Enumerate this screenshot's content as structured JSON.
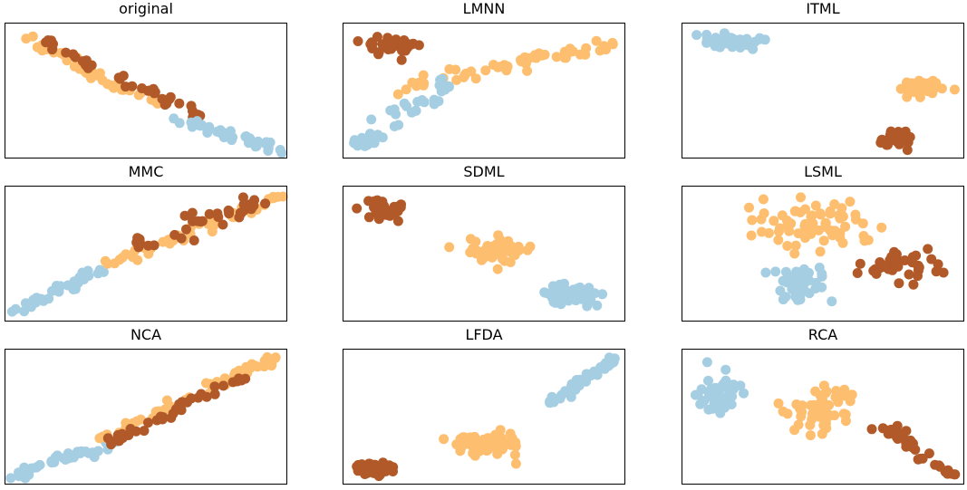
{
  "colors": {
    "class_0": "#a6cee3",
    "class_1": "#fdbf6f",
    "class_2": "#b15928"
  },
  "chart_data": [
    {
      "type": "scatter",
      "title": "original",
      "xlim": [
        0,
        100
      ],
      "ylim": [
        0,
        100
      ],
      "axes_ticks": false,
      "clusters": [
        {
          "cls": 1,
          "kind": "line",
          "from": [
            2,
            95
          ],
          "to": [
            55,
            38
          ],
          "jitter": [
            4,
            3
          ],
          "n": 40
        },
        {
          "cls": 2,
          "kind": "line",
          "from": [
            12,
            88
          ],
          "to": [
            70,
            30
          ],
          "jitter": [
            4,
            3
          ],
          "n": 40
        },
        {
          "cls": 0,
          "kind": "line",
          "from": [
            60,
            30
          ],
          "to": [
            98,
            5
          ],
          "jitter": [
            4,
            2.5
          ],
          "n": 38
        }
      ]
    },
    {
      "type": "scatter",
      "title": "LMNN",
      "xlim": [
        0,
        100
      ],
      "ylim": [
        0,
        100
      ],
      "axes_ticks": false,
      "clusters": [
        {
          "cls": 2,
          "kind": "blob",
          "c": [
            18,
            84
          ],
          "s": [
            11,
            6
          ],
          "n": 34
        },
        {
          "cls": 1,
          "kind": "line",
          "from": [
            20,
            52
          ],
          "to": [
            97,
            85
          ],
          "jitter": [
            4,
            5
          ],
          "n": 58
        },
        {
          "cls": 0,
          "kind": "line",
          "from": [
            5,
            8
          ],
          "to": [
            38,
            55
          ],
          "jitter": [
            5,
            5
          ],
          "n": 42
        }
      ]
    },
    {
      "type": "scatter",
      "title": "ITML",
      "xlim": [
        0,
        100
      ],
      "ylim": [
        0,
        100
      ],
      "axes_ticks": false,
      "clusters": [
        {
          "cls": 0,
          "kind": "blob",
          "c": [
            18,
            86
          ],
          "s": [
            9,
            5
          ],
          "n": 42
        },
        {
          "cls": 1,
          "kind": "blob",
          "c": [
            84,
            52
          ],
          "s": [
            7,
            6
          ],
          "n": 48
        },
        {
          "cls": 2,
          "kind": "blob",
          "c": [
            75,
            15
          ],
          "s": [
            5,
            6
          ],
          "n": 36
        }
      ]
    },
    {
      "type": "scatter",
      "title": "MMC",
      "xlim": [
        0,
        100
      ],
      "ylim": [
        0,
        100
      ],
      "axes_ticks": false,
      "clusters": [
        {
          "cls": 0,
          "kind": "line",
          "from": [
            3,
            6
          ],
          "to": [
            36,
            40
          ],
          "jitter": [
            3,
            3
          ],
          "n": 40
        },
        {
          "cls": 1,
          "kind": "line",
          "from": [
            38,
            42
          ],
          "to": [
            97,
            92
          ],
          "jitter": [
            3,
            4
          ],
          "n": 52
        },
        {
          "cls": 2,
          "kind": "line",
          "from": [
            46,
            55
          ],
          "to": [
            88,
            88
          ],
          "jitter": [
            5,
            8
          ],
          "n": 36
        }
      ]
    },
    {
      "type": "scatter",
      "title": "SDML",
      "xlim": [
        0,
        100
      ],
      "ylim": [
        0,
        100
      ],
      "axes_ticks": false,
      "clusters": [
        {
          "cls": 2,
          "kind": "blob",
          "c": [
            14,
            82
          ],
          "s": [
            9,
            7
          ],
          "n": 36
        },
        {
          "cls": 1,
          "kind": "blob",
          "c": [
            55,
            53
          ],
          "s": [
            11,
            9
          ],
          "n": 55
        },
        {
          "cls": 0,
          "kind": "blob",
          "c": [
            82,
            20
          ],
          "s": [
            10,
            6
          ],
          "n": 50
        }
      ]
    },
    {
      "type": "scatter",
      "title": "LSML",
      "xlim": [
        0,
        100
      ],
      "ylim": [
        0,
        100
      ],
      "axes_ticks": false,
      "clusters": [
        {
          "cls": 1,
          "kind": "blob",
          "c": [
            45,
            68
          ],
          "s": [
            20,
            18
          ],
          "n": 70
        },
        {
          "cls": 0,
          "kind": "blob",
          "c": [
            42,
            28
          ],
          "s": [
            10,
            11
          ],
          "n": 42
        },
        {
          "cls": 2,
          "kind": "blob",
          "c": [
            75,
            42
          ],
          "s": [
            15,
            12
          ],
          "n": 36
        }
      ]
    },
    {
      "type": "scatter",
      "title": "NCA",
      "xlim": [
        0,
        100
      ],
      "ylim": [
        0,
        100
      ],
      "axes_ticks": false,
      "clusters": [
        {
          "cls": 0,
          "kind": "line",
          "from": [
            3,
            6
          ],
          "to": [
            40,
            32
          ],
          "jitter": [
            3,
            3
          ],
          "n": 40
        },
        {
          "cls": 1,
          "kind": "line",
          "from": [
            35,
            35
          ],
          "to": [
            97,
            95
          ],
          "jitter": [
            3,
            3
          ],
          "n": 55
        },
        {
          "cls": 2,
          "kind": "line",
          "from": [
            36,
            30
          ],
          "to": [
            85,
            80
          ],
          "jitter": [
            3,
            3
          ],
          "n": 38
        }
      ]
    },
    {
      "type": "scatter",
      "title": "LFDA",
      "xlim": [
        0,
        100
      ],
      "ylim": [
        0,
        100
      ],
      "axes_ticks": false,
      "clusters": [
        {
          "cls": 2,
          "kind": "blob",
          "c": [
            11,
            12
          ],
          "s": [
            5,
            5
          ],
          "n": 36
        },
        {
          "cls": 1,
          "kind": "blob",
          "c": [
            50,
            30
          ],
          "s": [
            12,
            8
          ],
          "n": 55
        },
        {
          "cls": 0,
          "kind": "line",
          "from": [
            74,
            60
          ],
          "to": [
            96,
            92
          ],
          "jitter": [
            3,
            4
          ],
          "n": 44
        }
      ]
    },
    {
      "type": "scatter",
      "title": "RCA",
      "xlim": [
        0,
        100
      ],
      "ylim": [
        0,
        100
      ],
      "axes_ticks": false,
      "clusters": [
        {
          "cls": 0,
          "kind": "blob",
          "c": [
            14,
            68
          ],
          "s": [
            7,
            12
          ],
          "n": 48
        },
        {
          "cls": 1,
          "kind": "blob",
          "c": [
            49,
            56
          ],
          "s": [
            10,
            14
          ],
          "n": 58
        },
        {
          "cls": 2,
          "kind": "line",
          "from": [
            70,
            45
          ],
          "to": [
            96,
            8
          ],
          "jitter": [
            3,
            4
          ],
          "n": 38
        }
      ]
    }
  ]
}
